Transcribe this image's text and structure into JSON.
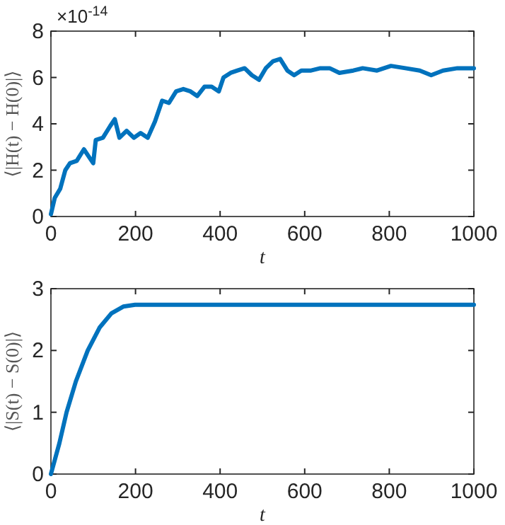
{
  "chart_data": [
    {
      "type": "line",
      "xlabel": "t",
      "ylabel": "⟨|H(t) − H(0)|⟩",
      "annotations": [
        "×10$^{-14}$"
      ],
      "xlim": [
        0,
        1000
      ],
      "xticks": [
        0,
        200,
        400,
        600,
        800,
        1000
      ],
      "ylim": [
        0,
        8
      ],
      "yticks": [
        0,
        2,
        4,
        6,
        8
      ],
      "grid": false,
      "marker": "none",
      "line_style": "solid",
      "series": [
        {
          "color": "#0072bd",
          "x": [
            0,
            9,
            22,
            34,
            45,
            61,
            78,
            89,
            100,
            106,
            123,
            140,
            151,
            162,
            179,
            196,
            212,
            229,
            246,
            263,
            279,
            296,
            313,
            330,
            346,
            363,
            380,
            397,
            408,
            425,
            441,
            458,
            475,
            492,
            508,
            525,
            542,
            559,
            575,
            592,
            615,
            637,
            659,
            682,
            715,
            737,
            771,
            804,
            838,
            872,
            899,
            927,
            961,
            1000
          ],
          "values": [
            0.1,
            0.8,
            1.2,
            2.0,
            2.3,
            2.4,
            2.9,
            2.6,
            2.3,
            3.3,
            3.4,
            3.9,
            4.2,
            3.4,
            3.7,
            3.4,
            3.6,
            3.4,
            4.1,
            5.0,
            4.9,
            5.4,
            5.5,
            5.4,
            5.2,
            5.6,
            5.6,
            5.4,
            6.0,
            6.2,
            6.3,
            6.4,
            6.1,
            5.9,
            6.4,
            6.7,
            6.8,
            6.3,
            6.1,
            6.3,
            6.3,
            6.4,
            6.4,
            6.2,
            6.3,
            6.4,
            6.3,
            6.5,
            6.4,
            6.3,
            6.1,
            6.3,
            6.4,
            6.4
          ]
        }
      ]
    },
    {
      "type": "line",
      "xlabel": "t",
      "ylabel": "⟨|S(t) − S(0)|⟩",
      "xlim": [
        0,
        1000
      ],
      "xticks": [
        0,
        200,
        400,
        600,
        800,
        1000
      ],
      "ylim": [
        0,
        3
      ],
      "yticks": [
        0,
        1,
        2,
        3
      ],
      "grid": false,
      "marker": "none",
      "line_style": "solid",
      "series": [
        {
          "color": "#0072bd",
          "x": [
            0,
            20,
            37,
            59,
            87,
            115,
            143,
            171,
            199,
            250,
            400,
            600,
            800,
            1000
          ],
          "values": [
            0,
            0.5,
            1.0,
            1.5,
            2.0,
            2.37,
            2.6,
            2.71,
            2.74,
            2.74,
            2.74,
            2.74,
            2.74,
            2.74
          ]
        }
      ]
    }
  ]
}
